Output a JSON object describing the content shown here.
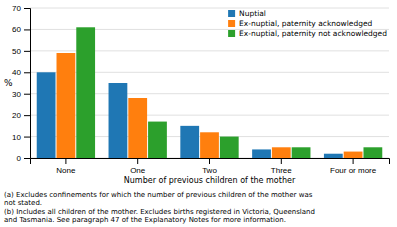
{
  "chart_data": {
    "type": "bar",
    "categories": [
      "None",
      "One",
      "Two",
      "Three",
      "Four or more"
    ],
    "series": [
      {
        "name": "Nuptial",
        "values": [
          40,
          35,
          15,
          4,
          2
        ]
      },
      {
        "name": "Ex-nuptial, paternity acknowledged",
        "values": [
          49,
          28,
          12,
          5,
          3
        ]
      },
      {
        "name": "Ex-nuptial, paternity not acknowledged",
        "values": [
          61,
          17,
          10,
          5,
          5
        ]
      }
    ],
    "xlabel": "Number of previous children of the mother",
    "ylabel": "%",
    "ylim": [
      0,
      70
    ],
    "yticks": [
      0,
      10,
      20,
      30,
      40,
      50,
      60,
      70
    ],
    "grid": true,
    "legend": "upper right",
    "annotations": [
      "(a) Excludes confinements for which the number of previous children of the mother was\nnot stated.",
      "(b) Includes all children of the mother. Excludes births registered in Victoria, Queensland\nand Tasmania. See paragraph 47 of the Explanatory Notes for more information."
    ]
  }
}
